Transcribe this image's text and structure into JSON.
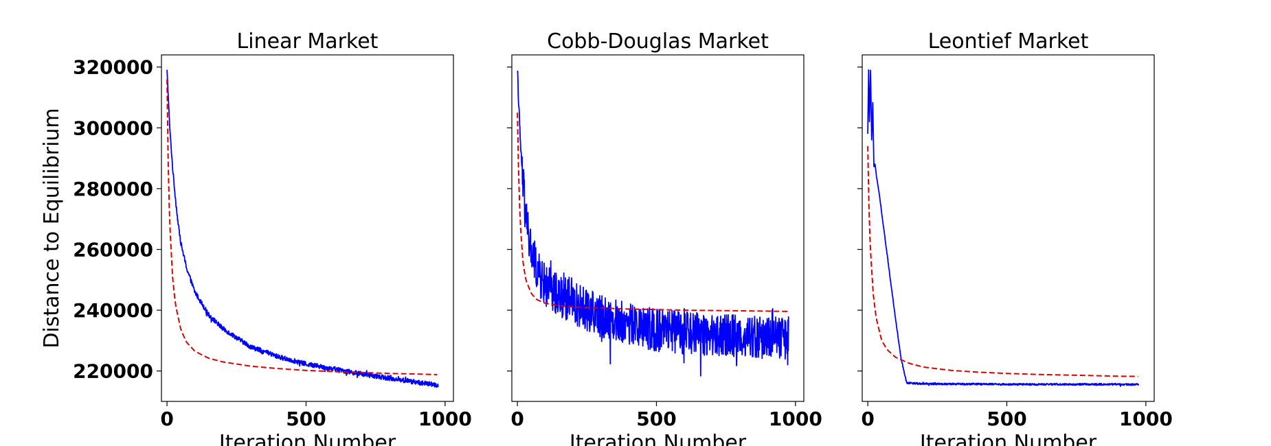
{
  "chart_data": [
    {
      "type": "line",
      "title": "Linear Market",
      "xlabel": "Iteration Number",
      "ylabel": "Distance to Equilibrium",
      "xlim": [
        -20,
        1030
      ],
      "ylim": [
        210000,
        324000
      ],
      "xticks": [
        0,
        500,
        1000
      ],
      "xtick_labels": [
        "0",
        "500",
        "1000"
      ],
      "yticks": [
        220000,
        240000,
        260000,
        280000,
        300000,
        320000
      ],
      "ytick_labels": [
        "220000",
        "240000",
        "260000",
        "280000",
        "300000",
        "320000"
      ],
      "show_ytick_labels": true,
      "grid": false,
      "series": [
        {
          "color": "#0000ff",
          "style": "solid",
          "noise": 800,
          "x": [
            0,
            10,
            20,
            30,
            40,
            50,
            70,
            100,
            150,
            200,
            300,
            400,
            500,
            600,
            700,
            800,
            900,
            975
          ],
          "y": [
            319000,
            300000,
            287000,
            277000,
            268500,
            262000,
            254000,
            246000,
            238500,
            234000,
            228000,
            224700,
            222300,
            220700,
            219000,
            217600,
            216300,
            215300
          ]
        },
        {
          "color": "#dd0000",
          "style": "dashed",
          "noise": 0,
          "x": [
            0,
            5,
            10,
            20,
            30,
            50,
            70,
            100,
            150,
            200,
            300,
            400,
            500,
            600,
            700,
            800,
            900,
            975
          ],
          "y": [
            316000,
            283000,
            268000,
            251000,
            242000,
            233500,
            229500,
            226500,
            224200,
            223000,
            221600,
            220800,
            220200,
            219800,
            219500,
            219200,
            219000,
            218800
          ]
        }
      ]
    },
    {
      "type": "line",
      "title": "Cobb-Douglas Market",
      "xlabel": "Iteration Number",
      "ylabel": "",
      "xlim": [
        -20,
        1030
      ],
      "ylim": [
        210000,
        324000
      ],
      "xticks": [
        0,
        500,
        1000
      ],
      "xtick_labels": [
        "0",
        "500",
        "1000"
      ],
      "yticks": [
        220000,
        240000,
        260000,
        280000,
        300000,
        320000
      ],
      "ytick_labels": [],
      "show_ytick_labels": false,
      "grid": false,
      "series": [
        {
          "color": "#0000ff",
          "style": "solid",
          "noise": 7000,
          "x": [
            0,
            5,
            10,
            20,
            30,
            50,
            80,
            100,
            150,
            200,
            300,
            400,
            500,
            600,
            700,
            800,
            900,
            975
          ],
          "y": [
            319000,
            308000,
            296000,
            282000,
            270000,
            259000,
            251000,
            248000,
            245000,
            242500,
            238000,
            235500,
            233500,
            232500,
            232000,
            231500,
            231000,
            231000
          ]
        },
        {
          "color": "#dd0000",
          "style": "dashed",
          "noise": 0,
          "x": [
            0,
            5,
            10,
            20,
            30,
            50,
            70,
            100,
            150,
            200,
            300,
            400,
            500,
            600,
            700,
            800,
            900,
            975
          ],
          "y": [
            305000,
            282000,
            269000,
            256000,
            250000,
            245500,
            243500,
            242300,
            241500,
            241100,
            240700,
            240400,
            240200,
            240000,
            239900,
            239800,
            239700,
            239600
          ]
        }
      ]
    },
    {
      "type": "line",
      "title": "Leontief Market",
      "xlabel": "Iteration Number",
      "ylabel": "",
      "xlim": [
        -20,
        1030
      ],
      "ylim": [
        210000,
        324000
      ],
      "xticks": [
        0,
        500,
        1000
      ],
      "xtick_labels": [
        "0",
        "500",
        "1000"
      ],
      "yticks": [
        220000,
        240000,
        260000,
        280000,
        300000,
        320000
      ],
      "ytick_labels": [],
      "show_ytick_labels": false,
      "grid": false,
      "series": [
        {
          "color": "#0000ff",
          "style": "solid",
          "noise": 300,
          "x": [
            0,
            3,
            6,
            10,
            14,
            18,
            22,
            26,
            30,
            40,
            60,
            80,
            100,
            120,
            140,
            160,
            200,
            300,
            400,
            500,
            600,
            700,
            800,
            900,
            975
          ],
          "y": [
            298000,
            319000,
            302000,
            319000,
            296000,
            308000,
            287000,
            288000,
            285000,
            279000,
            265000,
            251000,
            237000,
            224000,
            216000,
            216000,
            215800,
            215700,
            215700,
            215600,
            215600,
            215600,
            215600,
            215600,
            215600
          ]
        },
        {
          "color": "#dd0000",
          "style": "dashed",
          "noise": 0,
          "x": [
            0,
            5,
            10,
            20,
            30,
            50,
            70,
            100,
            150,
            200,
            300,
            400,
            500,
            600,
            700,
            800,
            900,
            975
          ],
          "y": [
            294000,
            270000,
            259000,
            245000,
            237500,
            230000,
            227000,
            224500,
            222500,
            221300,
            220200,
            219600,
            219200,
            218900,
            218700,
            218500,
            218300,
            218200
          ]
        }
      ]
    }
  ]
}
